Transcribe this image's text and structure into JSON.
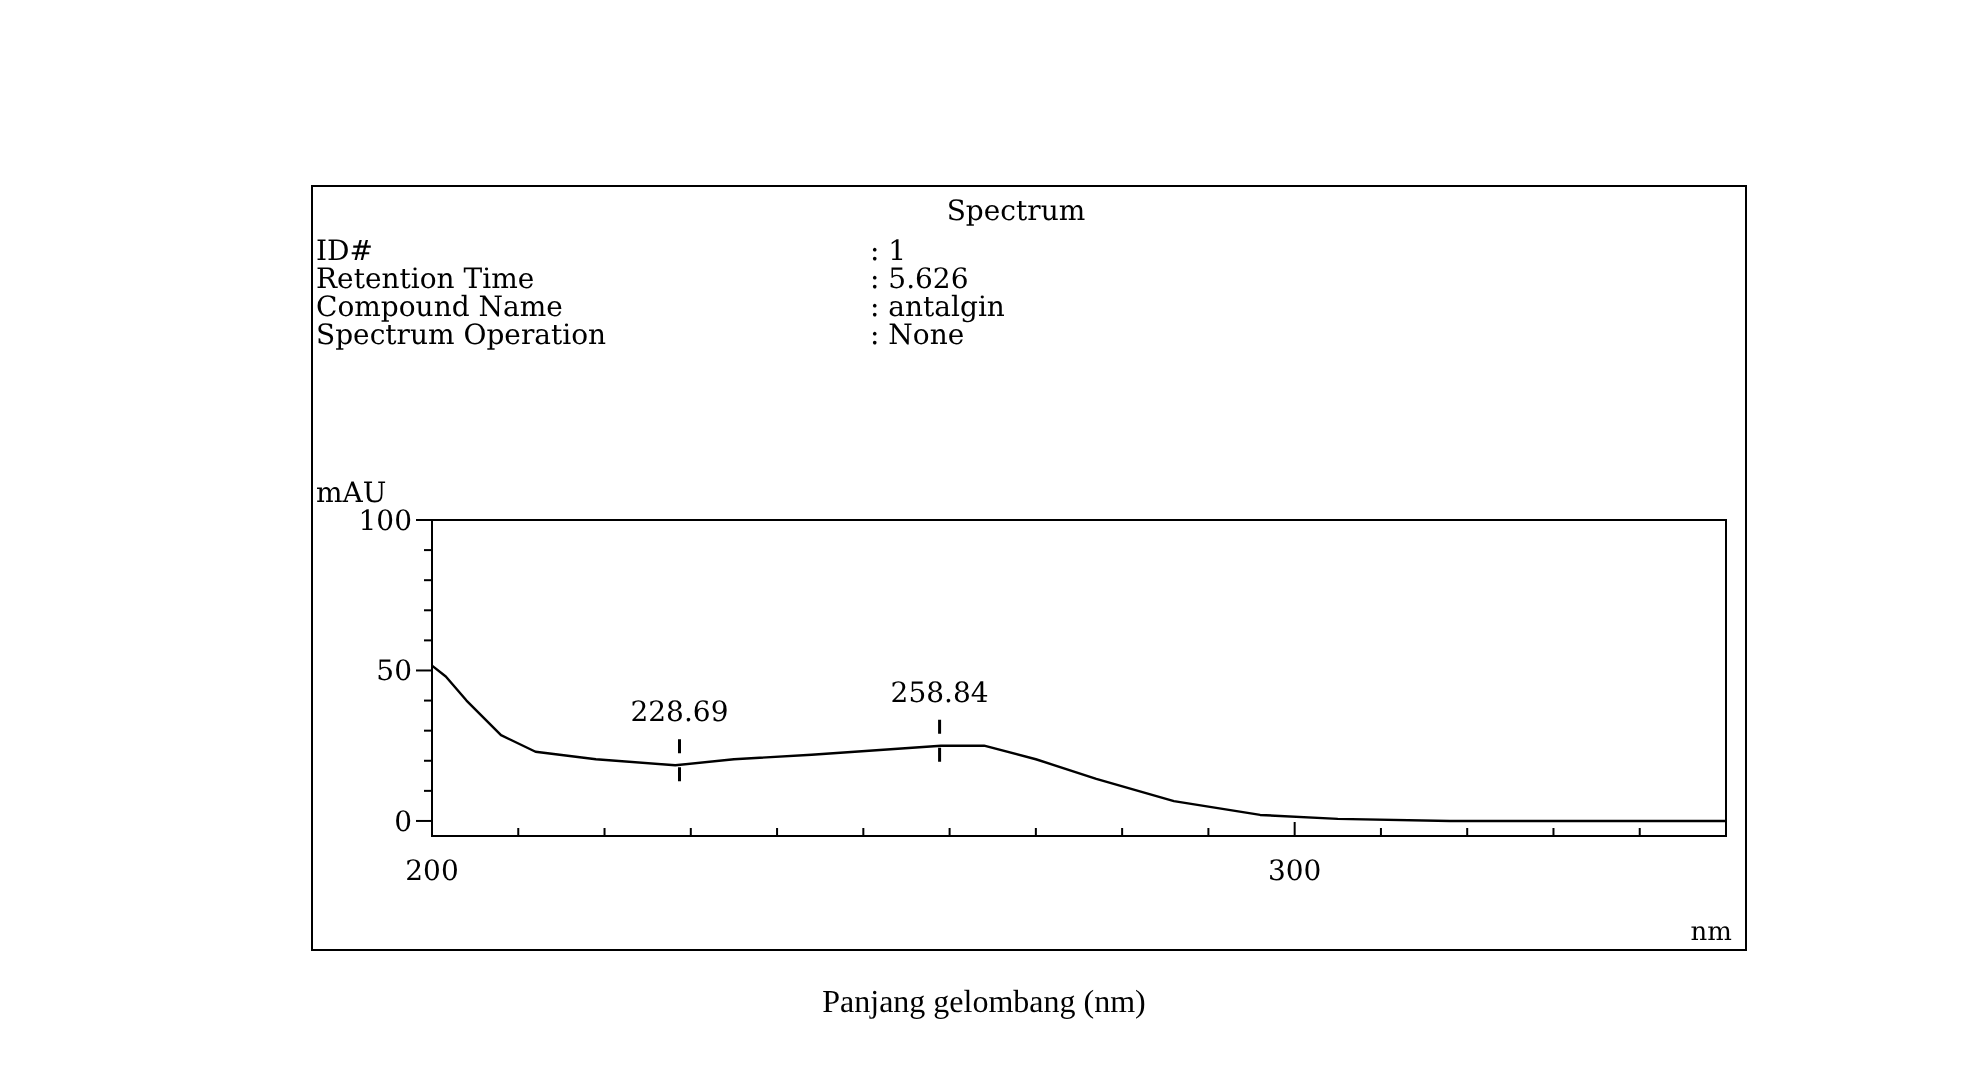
{
  "chart_data": {
    "type": "line",
    "title": "Spectrum",
    "xlabel": "nm",
    "ylabel": "mAU",
    "annotations": [
      "ID#",
      ": 1",
      "Retention Time",
      ": 5.626",
      "Compound Name",
      ": antalgin",
      "Spectrum Operation",
      ": None",
      "Panjang gelombang (nm)",
      {
        "text": "228.69",
        "x": 228.69,
        "y": 18.5
      },
      {
        "text": "258.84",
        "x": 258.84,
        "y": 25
      }
    ],
    "x": [
      200,
      201.6,
      204,
      208,
      212,
      219,
      228.2,
      235,
      244,
      254,
      259,
      264,
      270,
      277,
      286,
      296,
      305,
      318,
      350
    ],
    "series": [
      {
        "color": "#000000",
        "values": [
          51.6,
          48,
          40,
          28.5,
          23,
          20.5,
          18.5,
          20.5,
          22,
          24,
          25,
          25,
          20.5,
          14,
          6.6,
          2,
          0.7,
          0,
          0
        ]
      }
    ],
    "xlim": [
      200,
      350
    ],
    "ylim": [
      -5,
      100
    ],
    "xticks": [
      200,
      {
        "value": 210,
        "label": null
      },
      {
        "value": 220,
        "label": null
      },
      {
        "value": 230,
        "label": null
      },
      {
        "value": 240,
        "label": null
      },
      {
        "value": 250,
        "label": null
      },
      {
        "value": 260,
        "label": null
      },
      {
        "value": 270,
        "label": null
      },
      {
        "value": 280,
        "label": null
      },
      {
        "value": 290,
        "label": null
      },
      300,
      {
        "value": 310,
        "label": null
      },
      {
        "value": 320,
        "label": null
      },
      {
        "value": 330,
        "label": null
      },
      {
        "value": 340,
        "label": null
      }
    ],
    "yticks": [
      0,
      {
        "value": 10,
        "label": null
      },
      {
        "value": 20,
        "label": null
      },
      {
        "value": 30,
        "label": null
      },
      {
        "value": 40,
        "label": null
      },
      50,
      {
        "value": 60,
        "label": null
      },
      {
        "value": 70,
        "label": null
      },
      {
        "value": 80,
        "label": null
      },
      {
        "value": 90,
        "label": null
      },
      100
    ],
    "marker": "none",
    "line_style": "solid"
  }
}
